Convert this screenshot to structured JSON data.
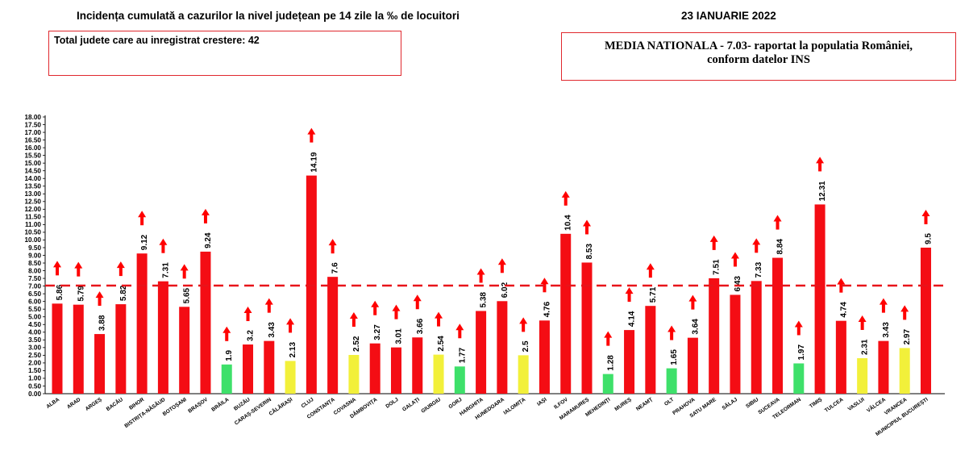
{
  "header": {
    "title": "Incidența cumulată a cazurilor la nivel județean pe 14 zile la ‰ de locuitori",
    "date": "23 IANUARIE 2022",
    "increase_box": "Total judete care au inregistrat crestere: 42",
    "national_line1": "MEDIA NATIONALA - 7.03-  raportat la populatia României,",
    "national_line2": "conform datelor INS"
  },
  "colors": {
    "red": "#f40d14",
    "green": "#3ee06a",
    "yellow": "#f2f03a",
    "arrow": "#ff0000",
    "average_line": "#e8141a"
  },
  "chart_data": {
    "type": "bar",
    "title": "Incidența cumulată a cazurilor la nivel județean pe 14 zile la ‰ de locuitori",
    "xlabel": "",
    "ylabel": "",
    "ylim": [
      0,
      18
    ],
    "ytick_step": 0.5,
    "average_line": 7.03,
    "grid": false,
    "legend": "none",
    "categories": [
      "ALBA",
      "ARAD",
      "ARGEȘ",
      "BACĂU",
      "BIHOR",
      "BISTRIȚA-NĂSĂUD",
      "BOTOȘANI",
      "BRAȘOV",
      "BRĂILA",
      "BUZĂU",
      "CARAȘ-SEVERIN",
      "CĂLĂRAȘI",
      "CLUJ",
      "CONSTANȚA",
      "COVASNA",
      "DÂMBOVIȚA",
      "DOLJ",
      "GALAȚI",
      "GIURGIU",
      "GORJ",
      "HARGHITA",
      "HUNEDOARA",
      "IALOMIȚA",
      "IAȘI",
      "ILFOV",
      "MARAMUREȘ",
      "MEHEDINȚI",
      "MUREȘ",
      "NEAMȚ",
      "OLT",
      "PRAHOVA",
      "SATU MARE",
      "SĂLAJ",
      "SIBIU",
      "SUCEAVA",
      "TELEORMAN",
      "TIMIȘ",
      "TULCEA",
      "VASLUI",
      "VÂLCEA",
      "VRANCEA",
      "MUNICIPIUL BUCUREȘTI"
    ],
    "values": [
      5.86,
      5.79,
      3.88,
      5.82,
      9.12,
      7.31,
      5.65,
      9.24,
      1.9,
      3.2,
      3.43,
      2.13,
      14.19,
      7.6,
      2.52,
      3.27,
      3.01,
      3.66,
      2.54,
      1.77,
      5.38,
      6.02,
      2.5,
      4.76,
      10.4,
      8.53,
      1.28,
      4.14,
      5.71,
      1.65,
      3.64,
      7.51,
      6.43,
      7.33,
      8.84,
      1.97,
      12.31,
      4.74,
      2.31,
      3.43,
      2.97,
      9.5
    ],
    "value_labels": [
      "5.86",
      "5.79",
      "3.88",
      "5.82",
      "9.12",
      "7.31",
      "5.65",
      "9.24",
      "1.9",
      "3.2",
      "3.43",
      "2.13",
      "14.19",
      "7.6",
      "2.52",
      "3.27",
      "3.01",
      "3.66",
      "2.54",
      "1.77",
      "5.38",
      "6.02",
      "2.5",
      "4.76",
      "10.4",
      "8.53",
      "1.28",
      "4.14",
      "5.71",
      "1.65",
      "3.64",
      "7.51",
      "6.43",
      "7.33",
      "8.84",
      "1.97",
      "12.31",
      "4.74",
      "2.31",
      "3.43",
      "2.97",
      "9.5"
    ],
    "bar_colors": [
      "red",
      "red",
      "red",
      "red",
      "red",
      "red",
      "red",
      "red",
      "green",
      "red",
      "red",
      "yellow",
      "red",
      "red",
      "yellow",
      "red",
      "red",
      "red",
      "yellow",
      "green",
      "red",
      "red",
      "yellow",
      "red",
      "red",
      "red",
      "green",
      "red",
      "red",
      "green",
      "red",
      "red",
      "red",
      "red",
      "red",
      "green",
      "red",
      "red",
      "yellow",
      "red",
      "yellow",
      "red"
    ],
    "trend": [
      "up",
      "up",
      "up",
      "up",
      "up",
      "up",
      "up",
      "up",
      "up",
      "up",
      "up",
      "up",
      "up",
      "up",
      "up",
      "up",
      "up",
      "up",
      "up",
      "up",
      "up",
      "up",
      "up",
      "up",
      "up",
      "up",
      "up",
      "up",
      "up",
      "up",
      "up",
      "up",
      "up",
      "up",
      "up",
      "up",
      "up",
      "up",
      "up",
      "up",
      "up",
      "up"
    ]
  }
}
